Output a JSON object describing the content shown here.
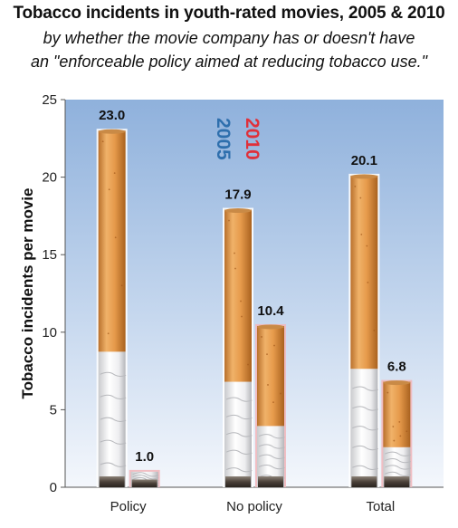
{
  "chart_data": {
    "type": "bar",
    "title": "Tobacco incidents in youth-rated movies, 2005 & 2010",
    "subtitle_lines": [
      "by whether the movie company has or doesn't have",
      "an \"enforceable policy aimed at reducing tobacco use.\""
    ],
    "xlabel": "",
    "ylabel": "Tobacco incidents per movie",
    "ylim": [
      0,
      25
    ],
    "yticks": [
      "0",
      "5",
      "10",
      "15",
      "20",
      "25"
    ],
    "categories": [
      "Policy",
      "No policy",
      "Total"
    ],
    "series": [
      {
        "name": "2005",
        "color": "#2e6fad",
        "values": [
          23.0,
          17.9,
          20.1
        ],
        "labels": [
          "23.0",
          "17.9",
          "20.1"
        ]
      },
      {
        "name": "2010",
        "color": "#e0303a",
        "values": [
          1.0,
          10.4,
          6.8
        ],
        "labels": [
          "1.0",
          "10.4",
          "6.8"
        ]
      }
    ],
    "legend_placement": "top-center, vertical text",
    "grid": false,
    "bar_style": "cigarette"
  }
}
